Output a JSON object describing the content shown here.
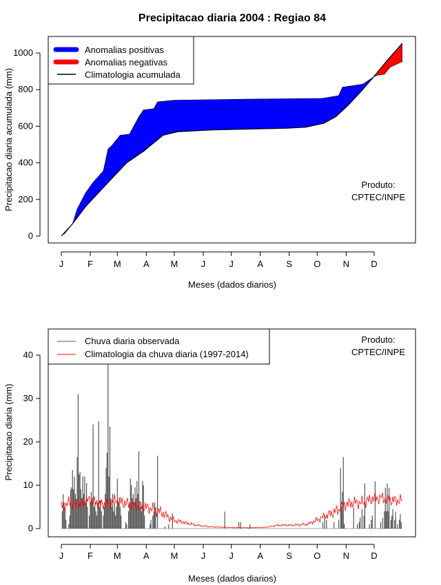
{
  "title": "Precipitacao diaria 2004 : Regiao 84",
  "chart_data": [
    {
      "type": "area",
      "ylabel": "Precipitacao diaria acumulada (mm)",
      "xlabel": "Meses (dados diarios)",
      "x_tick_labels": [
        "J",
        "F",
        "M",
        "A",
        "M",
        "J",
        "J",
        "A",
        "S",
        "O",
        "N",
        "D"
      ],
      "x_tick_days": [
        1,
        32,
        61,
        92,
        122,
        153,
        183,
        214,
        245,
        275,
        306,
        336
      ],
      "y_ticks": [
        0,
        200,
        400,
        600,
        800,
        1000
      ],
      "xlim": [
        1,
        366
      ],
      "ylim": [
        0,
        1000
      ],
      "legend": [
        "Anomalias positivas",
        "Anomalias negativas",
        "Climatologia acumulada"
      ],
      "legend_position": "top-left",
      "annotation": [
        "Produto:",
        "CPTEC/INPE"
      ],
      "colors": {
        "positive": "#0000ff",
        "negative": "#ff0000",
        "climatology": "#000000"
      },
      "observed_cumulative": [
        [
          1,
          0
        ],
        [
          5,
          16
        ],
        [
          13,
          67
        ],
        [
          18,
          148
        ],
        [
          27,
          236
        ],
        [
          35,
          293
        ],
        [
          46,
          356
        ],
        [
          51,
          475
        ],
        [
          55,
          494
        ],
        [
          64,
          551
        ],
        [
          74,
          557
        ],
        [
          84,
          652
        ],
        [
          89,
          689
        ],
        [
          100,
          696
        ],
        [
          104,
          733
        ],
        [
          121,
          742
        ],
        [
          200,
          748
        ],
        [
          280,
          752
        ],
        [
          298,
          767
        ],
        [
          302,
          813
        ],
        [
          324,
          830
        ],
        [
          335,
          868
        ],
        [
          339,
          878
        ],
        [
          347,
          884
        ],
        [
          353,
          922
        ],
        [
          366,
          953
        ]
      ],
      "climatology_cumulative": [
        [
          1,
          0
        ],
        [
          5,
          22
        ],
        [
          13,
          67
        ],
        [
          27,
          161
        ],
        [
          50,
          287
        ],
        [
          71,
          400
        ],
        [
          89,
          463
        ],
        [
          110,
          551
        ],
        [
          126,
          570
        ],
        [
          163,
          580
        ],
        [
          242,
          589
        ],
        [
          263,
          595
        ],
        [
          282,
          616
        ],
        [
          295,
          652
        ],
        [
          308,
          714
        ],
        [
          322,
          790
        ],
        [
          336,
          873
        ],
        [
          351,
          966
        ],
        [
          366,
          1052
        ]
      ]
    },
    {
      "type": "bar",
      "ylabel": "Precipitacao diaria (mm)",
      "xlabel": "Meses (dados diarios)",
      "x_tick_labels": [
        "J",
        "F",
        "M",
        "A",
        "M",
        "J",
        "J",
        "A",
        "S",
        "O",
        "N",
        "D"
      ],
      "x_tick_days": [
        1,
        32,
        61,
        92,
        122,
        153,
        183,
        214,
        245,
        275,
        306,
        336
      ],
      "y_ticks": [
        0,
        10,
        20,
        30,
        40
      ],
      "xlim": [
        1,
        366
      ],
      "ylim": [
        0,
        40
      ],
      "legend": [
        "Chuva diaria observada",
        "Climatologia da chuva diaria (1997-2014)"
      ],
      "legend_position": "top-left",
      "annotation": [
        "Produto:",
        "CPTEC/INPE"
      ],
      "colors": {
        "observed": "#555555",
        "climatology": "#ff0000"
      },
      "observed_daily": [
        [
          2,
          4
        ],
        [
          3,
          7.9
        ],
        [
          4,
          6
        ],
        [
          5,
          4
        ],
        [
          6,
          2
        ],
        [
          9,
          1
        ],
        [
          10,
          3
        ],
        [
          11,
          9
        ],
        [
          12,
          9.5
        ],
        [
          13,
          13.5
        ],
        [
          14,
          9
        ],
        [
          15,
          12
        ],
        [
          16,
          8
        ],
        [
          17,
          6
        ],
        [
          18,
          16.5
        ],
        [
          19,
          31
        ],
        [
          20,
          12.5
        ],
        [
          21,
          13
        ],
        [
          22,
          9
        ],
        [
          23,
          7
        ],
        [
          24,
          12
        ],
        [
          25,
          8
        ],
        [
          26,
          12
        ],
        [
          27,
          6
        ],
        [
          28,
          10.5
        ],
        [
          29,
          5
        ],
        [
          31,
          3
        ],
        [
          32,
          6
        ],
        [
          33,
          8.5
        ],
        [
          34,
          7
        ],
        [
          35,
          24
        ],
        [
          36,
          5
        ],
        [
          37,
          6
        ],
        [
          38,
          4
        ],
        [
          39,
          3
        ],
        [
          40,
          6
        ],
        [
          41,
          24.7
        ],
        [
          42,
          5
        ],
        [
          43,
          6.5
        ],
        [
          44,
          4
        ],
        [
          46,
          3
        ],
        [
          47,
          5
        ],
        [
          48,
          8
        ],
        [
          49,
          14
        ],
        [
          50,
          17.5
        ],
        [
          51,
          38
        ],
        [
          52,
          12
        ],
        [
          53,
          23.5
        ],
        [
          54,
          7
        ],
        [
          55,
          5
        ],
        [
          56,
          8
        ],
        [
          57,
          4
        ],
        [
          58,
          6
        ],
        [
          59,
          3
        ],
        [
          60,
          5
        ],
        [
          61,
          11.5
        ],
        [
          62,
          6
        ],
        [
          63,
          7
        ],
        [
          64,
          5
        ],
        [
          65,
          3
        ],
        [
          70,
          1.5
        ],
        [
          71,
          1
        ],
        [
          73,
          4
        ],
        [
          74,
          6
        ],
        [
          75,
          11.5
        ],
        [
          76,
          10
        ],
        [
          77,
          7
        ],
        [
          78,
          8
        ],
        [
          79,
          6
        ],
        [
          80,
          9.5
        ],
        [
          81,
          7
        ],
        [
          82,
          11
        ],
        [
          83,
          8
        ],
        [
          84,
          17.8
        ],
        [
          85,
          5
        ],
        [
          86,
          6
        ],
        [
          87,
          4
        ],
        [
          88,
          11
        ],
        [
          89,
          10
        ],
        [
          90,
          3
        ],
        [
          96,
          1
        ],
        [
          97,
          2
        ],
        [
          99,
          3
        ],
        [
          100,
          4
        ],
        [
          101,
          6
        ],
        [
          102,
          5
        ],
        [
          104,
          16.8
        ],
        [
          112,
          0.5
        ],
        [
          116,
          1
        ],
        [
          120,
          3.5
        ],
        [
          176,
          3.9
        ],
        [
          191,
          1.5
        ],
        [
          193,
          1.5
        ],
        [
          203,
          1
        ],
        [
          281,
          1.5
        ],
        [
          283,
          3
        ],
        [
          285,
          2
        ],
        [
          293,
          1.5
        ],
        [
          298,
          2
        ],
        [
          300,
          14
        ],
        [
          301,
          5
        ],
        [
          302,
          8.5
        ],
        [
          303,
          16.5
        ],
        [
          304,
          1
        ],
        [
          314,
          4.8
        ],
        [
          318,
          1
        ],
        [
          320,
          1.5
        ],
        [
          321,
          2.5
        ],
        [
          323,
          4.5
        ],
        [
          325,
          3
        ],
        [
          326,
          10.4
        ],
        [
          331,
          1
        ],
        [
          333,
          2
        ],
        [
          334,
          3
        ],
        [
          337,
          10.9
        ],
        [
          343,
          1.5
        ],
        [
          345,
          2.5
        ],
        [
          347,
          4
        ],
        [
          348,
          9.4
        ],
        [
          349,
          4
        ],
        [
          350,
          10.4
        ],
        [
          351,
          4
        ],
        [
          352,
          9.4
        ],
        [
          354,
          2
        ],
        [
          355,
          3
        ],
        [
          356,
          4.5
        ],
        [
          358,
          2
        ],
        [
          359,
          3.8
        ],
        [
          361,
          1
        ],
        [
          363,
          2
        ],
        [
          364,
          3.4
        ],
        [
          365,
          1.5
        ]
      ],
      "climatology_daily": [
        [
          1,
          5
        ],
        [
          10,
          6
        ],
        [
          20,
          5.5
        ],
        [
          30,
          6.5
        ],
        [
          45,
          5.5
        ],
        [
          60,
          6.5
        ],
        [
          75,
          5.5
        ],
        [
          90,
          5
        ],
        [
          100,
          4.5
        ],
        [
          110,
          3.5
        ],
        [
          120,
          2
        ],
        [
          130,
          1.5
        ],
        [
          145,
          0.8
        ],
        [
          160,
          0.4
        ],
        [
          175,
          0.3
        ],
        [
          190,
          0.2
        ],
        [
          205,
          0.2
        ],
        [
          220,
          0.3
        ],
        [
          235,
          0.8
        ],
        [
          250,
          0.8
        ],
        [
          265,
          1
        ],
        [
          275,
          2
        ],
        [
          285,
          3
        ],
        [
          295,
          4
        ],
        [
          305,
          5.5
        ],
        [
          315,
          6
        ],
        [
          325,
          6
        ],
        [
          335,
          7
        ],
        [
          345,
          7
        ],
        [
          355,
          6.5
        ],
        [
          366,
          6.5
        ]
      ]
    }
  ]
}
